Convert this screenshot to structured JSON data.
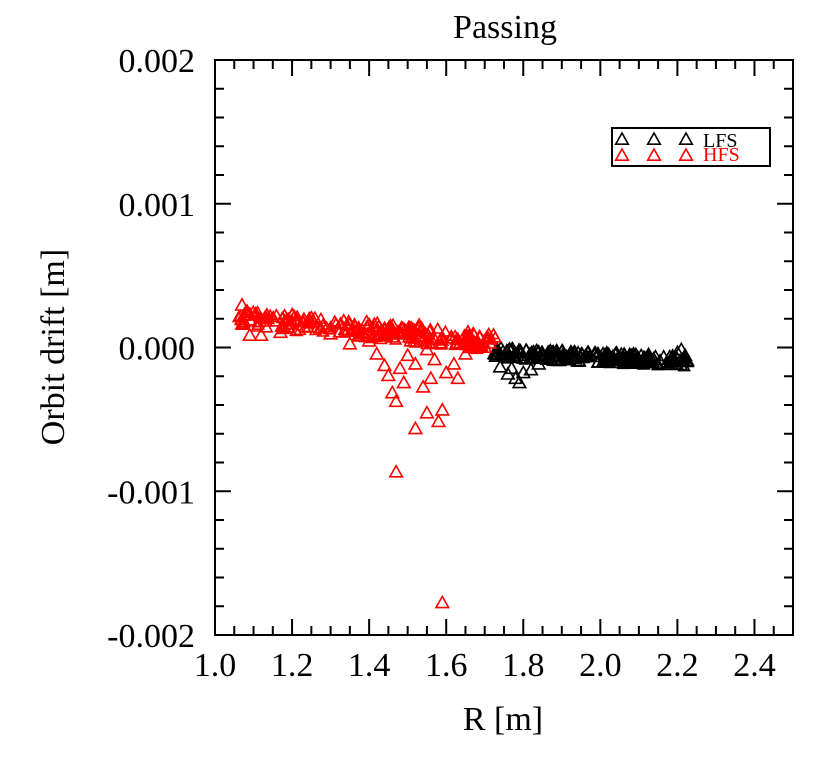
{
  "chart_data": {
    "type": "scatter",
    "title": "Passing",
    "xlabel": "R [m]",
    "ylabel": "Orbit drift [m]",
    "xlim": [
      1.0,
      2.5
    ],
    "ylim": [
      -0.002,
      0.002
    ],
    "x_ticks": [
      1.0,
      1.2,
      1.4,
      1.6,
      1.8,
      2.0,
      2.2,
      2.4
    ],
    "x_tick_labels": [
      "1.0",
      "1.2",
      "1.4",
      "1.6",
      "1.8",
      "2.0",
      "2.2",
      "2.4"
    ],
    "y_ticks": [
      -0.002,
      -0.001,
      0.0,
      0.001,
      0.002
    ],
    "y_tick_labels": [
      "-0.002",
      "-0.001",
      "0.000",
      "0.001",
      "0.002"
    ],
    "marker": "open-triangle",
    "legend_position": "top-right",
    "series": [
      {
        "name": "LFS",
        "color": "#000000",
        "band": {
          "x_range": [
            1.72,
            2.23
          ],
          "center_start": -4e-05,
          "center_end": -0.0001,
          "half_width": 4e-05
        },
        "points": [
          [
            1.76,
            -0.00019
          ],
          [
            1.78,
            -0.00022
          ],
          [
            1.79,
            -0.00025
          ],
          [
            1.8,
            -0.00018
          ],
          [
            1.77,
            -0.00015
          ],
          [
            1.82,
            -0.00016
          ],
          [
            1.84,
            -0.00012
          ],
          [
            1.74,
            -0.00014
          ],
          [
            2.2,
            -4e-05
          ],
          [
            2.21,
            -2e-05
          ],
          [
            2.22,
            -6e-05
          ],
          [
            2.18,
            -7e-05
          ]
        ]
      },
      {
        "name": "HFS",
        "color": "#ff0000",
        "band": {
          "x_range": [
            1.06,
            1.73
          ],
          "center_start": 0.00021,
          "center_end": 3e-05,
          "half_width": 6e-05
        },
        "points": [
          [
            1.07,
            0.00029
          ],
          [
            1.09,
            8e-05
          ],
          [
            1.12,
            8e-05
          ],
          [
            1.17,
            0.0001
          ],
          [
            1.3,
            9e-05
          ],
          [
            1.35,
            2e-05
          ],
          [
            1.4,
            4e-05
          ],
          [
            1.42,
            -5e-05
          ],
          [
            1.44,
            -0.00013
          ],
          [
            1.45,
            -0.0002
          ],
          [
            1.46,
            -0.00032
          ],
          [
            1.47,
            -0.00038
          ],
          [
            1.47,
            -0.00087
          ],
          [
            1.48,
            -0.00015
          ],
          [
            1.49,
            -0.00025
          ],
          [
            1.5,
            -6e-05
          ],
          [
            1.52,
            -0.00057
          ],
          [
            1.53,
            0.00015
          ],
          [
            1.54,
            -0.00028
          ],
          [
            1.55,
            -0.00046
          ],
          [
            1.56,
            -0.00022
          ],
          [
            1.57,
            -9e-05
          ],
          [
            1.58,
            -0.00052
          ],
          [
            1.59,
            -0.00044
          ],
          [
            1.59,
            -0.00178
          ],
          [
            1.6,
            -0.00018
          ],
          [
            1.62,
            -0.00012
          ],
          [
            1.63,
            -0.00022
          ],
          [
            1.65,
            -5e-05
          ],
          [
            1.67,
            2e-05
          ],
          [
            1.52,
            -0.00012
          ],
          [
            1.55,
            -2e-05
          ]
        ]
      }
    ]
  }
}
